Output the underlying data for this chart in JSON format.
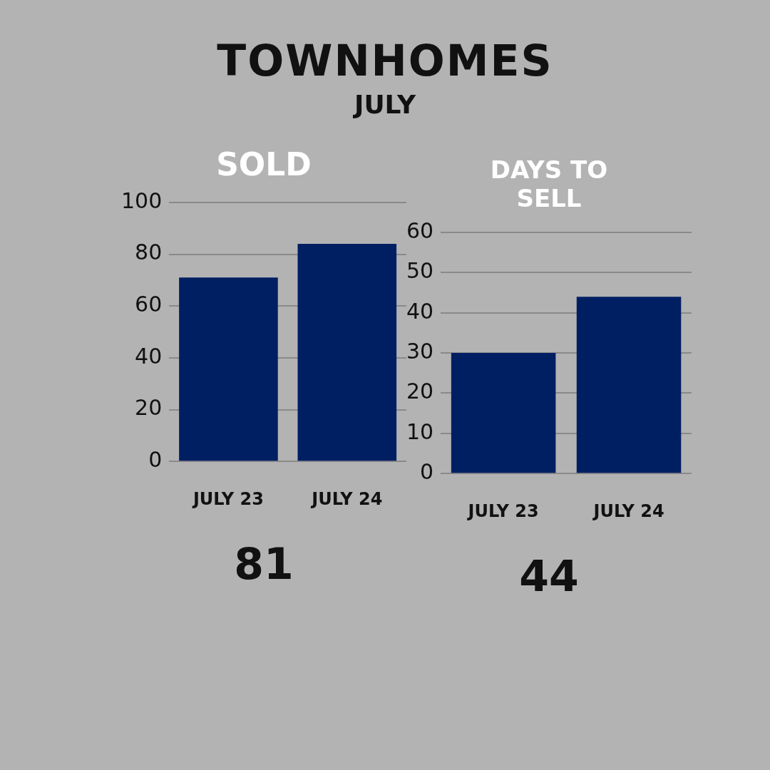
{
  "chart_data": [
    {
      "type": "other",
      "title": "TOWNHOMES",
      "subtitle": "JULY"
    },
    {
      "type": "bar",
      "title": "SOLD",
      "categories": [
        "JULY 23",
        "JULY 24"
      ],
      "values": [
        71,
        84
      ],
      "color": "#001f63",
      "ylim": [
        0,
        100
      ],
      "yticks": [
        0,
        20,
        40,
        60,
        80,
        100
      ],
      "grid": "y",
      "annotations": [
        "81"
      ]
    },
    {
      "type": "bar",
      "title": "DAYS TO SELL",
      "categories": [
        "JULY 23",
        "JULY 24"
      ],
      "values": [
        30,
        44
      ],
      "color": "#001f63",
      "ylim": [
        0,
        60
      ],
      "yticks": [
        0,
        10,
        20,
        30,
        40,
        50,
        60
      ],
      "grid": "y",
      "annotations": [
        "44"
      ]
    }
  ]
}
